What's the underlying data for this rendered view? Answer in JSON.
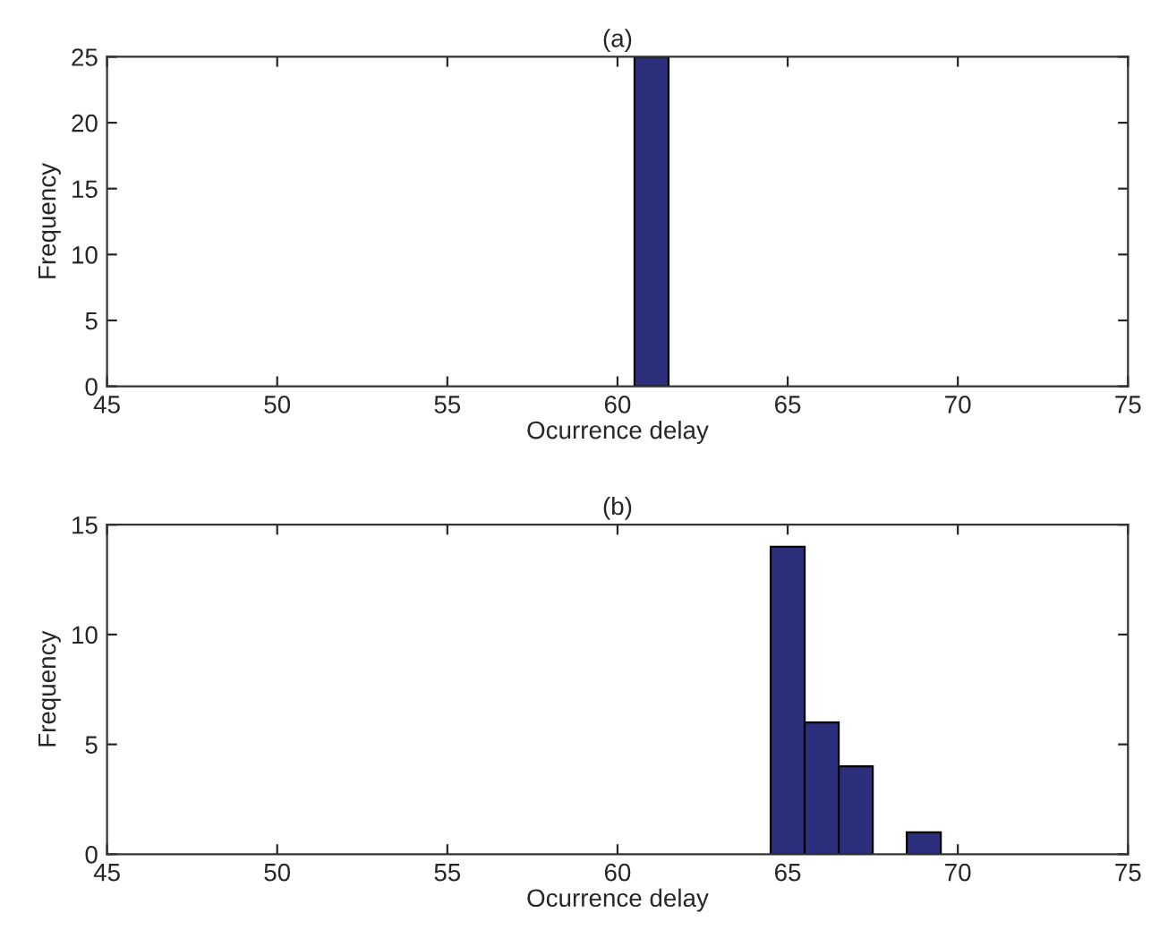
{
  "chart_data": [
    {
      "type": "histogram",
      "title": "(a)",
      "xlabel": "Ocurrence delay",
      "ylabel": "Frequency",
      "bins": [
        60.5,
        61.5
      ],
      "values": [
        25
      ],
      "color": "#2b2f7c",
      "xlim": [
        45,
        75
      ],
      "xticks": [
        45,
        50,
        55,
        60,
        65,
        70,
        75
      ],
      "ylim": [
        0,
        25
      ],
      "yticks": [
        0,
        5,
        10,
        15,
        20,
        25
      ],
      "grid": false
    },
    {
      "type": "histogram",
      "title": "(b)",
      "xlabel": "Ocurrence delay",
      "ylabel": "Frequency",
      "bins": [
        64.5,
        65.5,
        66.5,
        67.5,
        68.5,
        69.5
      ],
      "values": [
        14,
        6,
        4,
        0,
        1
      ],
      "color": "#2b2f7c",
      "xlim": [
        45,
        75
      ],
      "xticks": [
        45,
        50,
        55,
        60,
        65,
        70,
        75
      ],
      "ylim": [
        0,
        15
      ],
      "yticks": [
        0,
        5,
        10,
        15
      ],
      "grid": false
    }
  ]
}
